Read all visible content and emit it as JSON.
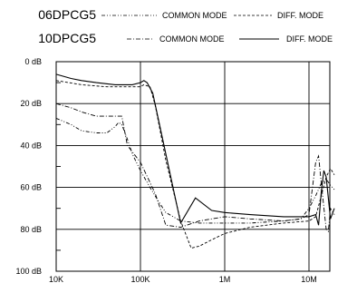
{
  "chart_data": {
    "type": "line",
    "title": "",
    "xlabel": "",
    "ylabel": "",
    "x_scale": "log",
    "xlim": [
      10000,
      20000000
    ],
    "ylim_inverted_db": [
      0,
      100
    ],
    "grid": true,
    "x_ticks": [
      {
        "value": 10000,
        "label": "10K"
      },
      {
        "value": 100000,
        "label": "100K"
      },
      {
        "value": 1000000,
        "label": "1M"
      },
      {
        "value": 10000000,
        "label": "10M"
      }
    ],
    "y_ticks": [
      {
        "value": 0,
        "label": "0 dB"
      },
      {
        "value": 20,
        "label": "20 dB"
      },
      {
        "value": 40,
        "label": "40 dB"
      },
      {
        "value": 60,
        "label": "60 dB"
      },
      {
        "value": 80,
        "label": "80 dB"
      },
      {
        "value": 100,
        "label": "100 dB"
      }
    ],
    "legend": {
      "placement": "top",
      "groups": [
        {
          "part": "06DPCG5",
          "common_label": "COMMON MODE",
          "diff_label": "DIFF. MODE"
        },
        {
          "part": "10DPCG5",
          "common_label": "COMMON MODE",
          "diff_label": "DIFF. MODE"
        }
      ]
    },
    "series": [
      {
        "style": "dash-dot-dot",
        "points": [
          [
            10000,
            27
          ],
          [
            15000,
            30
          ],
          [
            20000,
            33
          ],
          [
            30000,
            34
          ],
          [
            40000,
            34
          ],
          [
            50000,
            31
          ],
          [
            55000,
            29
          ],
          [
            60000,
            30
          ],
          [
            70000,
            37
          ],
          [
            80000,
            44
          ],
          [
            100000,
            52
          ],
          [
            130000,
            60
          ],
          [
            160000,
            66
          ],
          [
            200000,
            72
          ],
          [
            300000,
            76
          ],
          [
            500000,
            77
          ],
          [
            1000000,
            77
          ],
          [
            2000000,
            77
          ],
          [
            5000000,
            76
          ],
          [
            8000000,
            75
          ],
          [
            10000000,
            70
          ],
          [
            12000000,
            64
          ],
          [
            14000000,
            58
          ],
          [
            16000000,
            56
          ],
          [
            18000000,
            59
          ],
          [
            20000000,
            61
          ]
        ]
      },
      {
        "style": "dashed",
        "points": [
          [
            10000,
            9
          ],
          [
            20000,
            11
          ],
          [
            40000,
            12
          ],
          [
            70000,
            12
          ],
          [
            100000,
            12
          ],
          [
            110000,
            11
          ],
          [
            130000,
            12
          ],
          [
            150000,
            21
          ],
          [
            200000,
            47
          ],
          [
            300000,
            76
          ],
          [
            400000,
            89
          ],
          [
            500000,
            88
          ],
          [
            700000,
            85
          ],
          [
            1000000,
            82
          ],
          [
            2000000,
            79
          ],
          [
            5000000,
            77
          ],
          [
            10000000,
            76
          ],
          [
            12000000,
            74
          ],
          [
            14000000,
            64
          ],
          [
            16000000,
            55
          ],
          [
            18000000,
            51
          ],
          [
            20000000,
            54
          ]
        ]
      },
      {
        "style": "dash-dot",
        "points": [
          [
            10000,
            20
          ],
          [
            15000,
            22
          ],
          [
            20000,
            24
          ],
          [
            30000,
            26
          ],
          [
            50000,
            26
          ],
          [
            60000,
            26
          ],
          [
            70000,
            40
          ],
          [
            100000,
            48
          ],
          [
            150000,
            63
          ],
          [
            200000,
            78
          ],
          [
            300000,
            79
          ],
          [
            500000,
            76
          ],
          [
            1000000,
            74
          ],
          [
            2000000,
            75
          ],
          [
            5000000,
            76
          ],
          [
            8000000,
            75
          ],
          [
            10000000,
            73
          ],
          [
            12000000,
            48
          ],
          [
            13000000,
            45
          ],
          [
            14000000,
            58
          ],
          [
            16000000,
            80
          ],
          [
            17000000,
            81
          ],
          [
            18000000,
            70
          ],
          [
            20000000,
            73
          ]
        ]
      },
      {
        "style": "solid",
        "points": [
          [
            10000,
            6
          ],
          [
            15000,
            8
          ],
          [
            20000,
            9
          ],
          [
            30000,
            10
          ],
          [
            50000,
            11
          ],
          [
            80000,
            11
          ],
          [
            100000,
            10
          ],
          [
            110000,
            9
          ],
          [
            120000,
            10
          ],
          [
            140000,
            15
          ],
          [
            200000,
            44
          ],
          [
            300000,
            77
          ],
          [
            450000,
            65
          ],
          [
            700000,
            71
          ],
          [
            1000000,
            72
          ],
          [
            2000000,
            73
          ],
          [
            5000000,
            74
          ],
          [
            10000000,
            74
          ],
          [
            12000000,
            73
          ],
          [
            13000000,
            78
          ],
          [
            14000000,
            62
          ],
          [
            15000000,
            52
          ],
          [
            16000000,
            55
          ],
          [
            18000000,
            75
          ],
          [
            20000000,
            70
          ]
        ]
      }
    ]
  }
}
